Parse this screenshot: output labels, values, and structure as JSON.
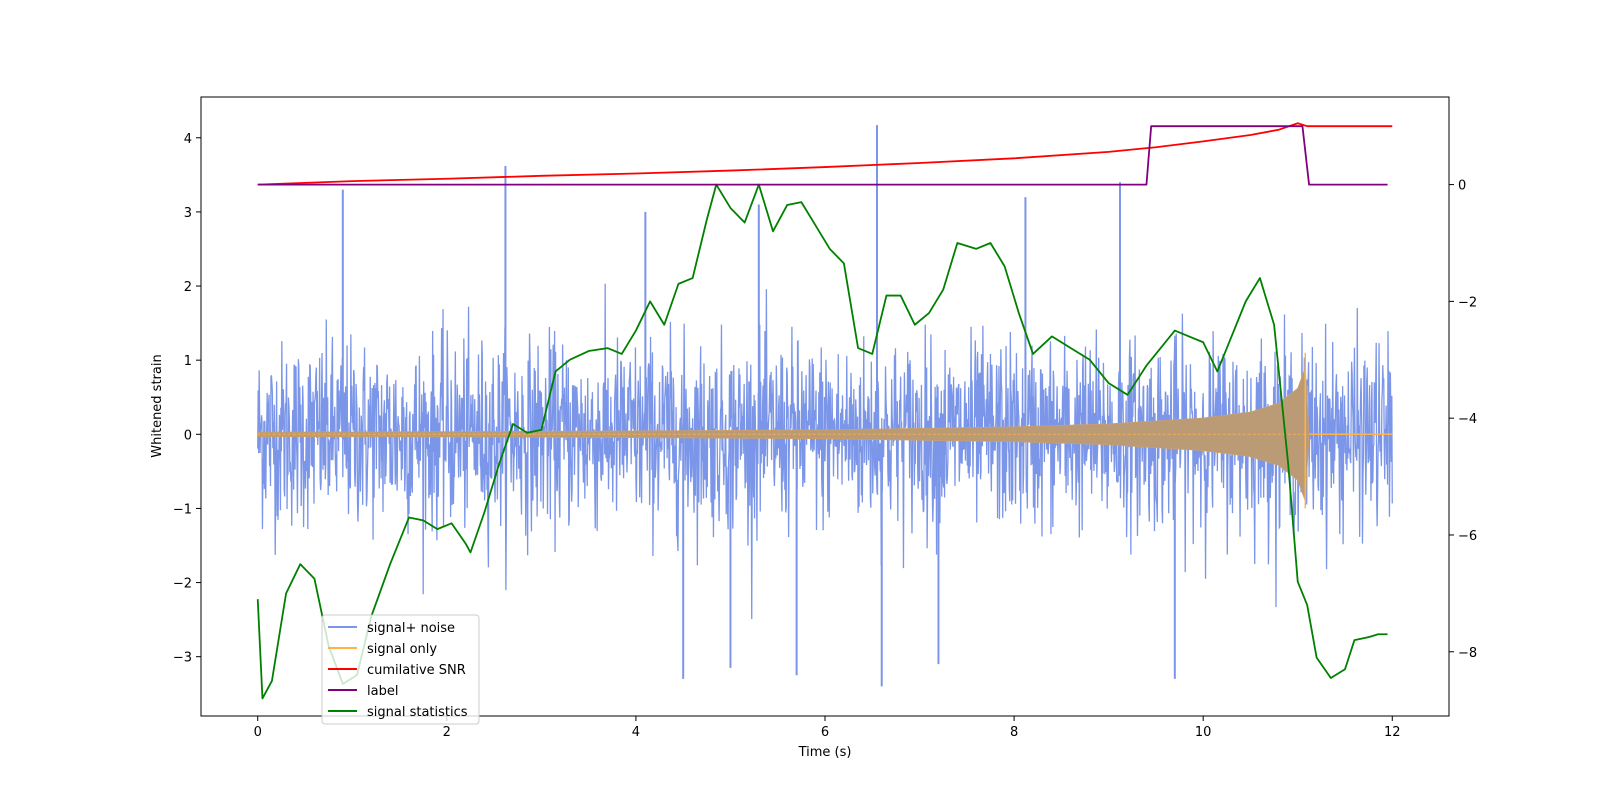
{
  "chart_data": {
    "type": "line",
    "xlabel": "Time (s)",
    "ylabel": "Whitened strain",
    "xlim": [
      -0.6,
      12.6
    ],
    "ylim": [
      -3.8,
      4.55
    ],
    "y2lim": [
      -9.1,
      1.5
    ],
    "xticks": [
      0,
      2,
      4,
      6,
      8,
      10,
      12
    ],
    "yticks": [
      -3,
      -2,
      -1,
      0,
      1,
      2,
      3,
      4
    ],
    "y2ticks": [
      -8,
      -6,
      -4,
      -2,
      0
    ],
    "legend_position": "lower-left",
    "noise_series": {
      "name": "signal+ noise",
      "color": "#7b96e8",
      "x_range": [
        0,
        12
      ],
      "typical_amplitude": 1.5,
      "spikes": [
        [
          0.9,
          3.3
        ],
        [
          2.62,
          3.62
        ],
        [
          6.55,
          4.17
        ],
        [
          9.12,
          3.4
        ],
        [
          4.1,
          3.0
        ],
        [
          5.3,
          3.1
        ],
        [
          8.12,
          3.2
        ]
      ],
      "negative_spikes": [
        [
          4.5,
          -3.3
        ],
        [
          6.6,
          -3.4
        ],
        [
          9.7,
          -3.3
        ],
        [
          5.0,
          -3.15
        ],
        [
          5.7,
          -3.25
        ],
        [
          7.2,
          -3.1
        ]
      ]
    },
    "signal_series": {
      "name": "signal only",
      "color": "#ffb347",
      "envelope": {
        "x": [
          0,
          2,
          4,
          6,
          8,
          9,
          10,
          10.5,
          10.8,
          11.0,
          11.08,
          11.12,
          12
        ],
        "y": [
          0.03,
          0.035,
          0.045,
          0.06,
          0.1,
          0.14,
          0.22,
          0.3,
          0.42,
          0.62,
          0.9,
          0.0,
          0.0
        ]
      }
    },
    "series": [
      {
        "name": "cumilative SNR",
        "color": "#ff0000",
        "axis": "right",
        "x": [
          0,
          1,
          2,
          3,
          4,
          5,
          6,
          7,
          8,
          9,
          9.5,
          10,
          10.5,
          10.8,
          11.0,
          11.1,
          12
        ],
        "y": [
          0.0,
          0.06,
          0.1,
          0.15,
          0.19,
          0.24,
          0.3,
          0.37,
          0.45,
          0.56,
          0.64,
          0.74,
          0.85,
          0.94,
          1.05,
          1.0,
          1.0
        ]
      },
      {
        "name": "label",
        "color": "#800080",
        "axis": "right",
        "x": [
          0,
          9.4,
          9.45,
          11.05,
          11.12,
          11.95
        ],
        "y": [
          0,
          0,
          1,
          1,
          0,
          0
        ]
      },
      {
        "name": "signal statistics",
        "color": "#008000",
        "axis": "right",
        "x": [
          0,
          0.05,
          0.15,
          0.3,
          0.45,
          0.6,
          0.75,
          0.9,
          1.05,
          1.2,
          1.4,
          1.6,
          1.75,
          1.9,
          2.05,
          2.2,
          2.25,
          2.4,
          2.55,
          2.7,
          2.85,
          3.0,
          3.15,
          3.3,
          3.5,
          3.7,
          3.85,
          4.0,
          4.15,
          4.3,
          4.45,
          4.6,
          4.75,
          4.85,
          5.0,
          5.15,
          5.3,
          5.45,
          5.6,
          5.75,
          5.9,
          6.05,
          6.2,
          6.35,
          6.5,
          6.65,
          6.8,
          6.95,
          7.1,
          7.25,
          7.4,
          7.6,
          7.75,
          7.9,
          8.05,
          8.2,
          8.4,
          8.6,
          8.8,
          9.0,
          9.2,
          9.4,
          9.55,
          9.7,
          9.85,
          10.0,
          10.15,
          10.3,
          10.45,
          10.6,
          10.75,
          10.9,
          11.0,
          11.1,
          11.2,
          11.35,
          11.5,
          11.6,
          11.75,
          11.85,
          11.95
        ],
        "y": [
          -7.1,
          -8.8,
          -8.5,
          -7.0,
          -6.5,
          -6.75,
          -7.9,
          -8.55,
          -8.4,
          -7.4,
          -6.5,
          -5.7,
          -5.75,
          -5.9,
          -5.8,
          -6.15,
          -6.3,
          -5.6,
          -4.8,
          -4.1,
          -4.25,
          -4.2,
          -3.2,
          -3.0,
          -2.85,
          -2.8,
          -2.9,
          -2.5,
          -2.0,
          -2.4,
          -1.7,
          -1.6,
          -0.6,
          0.0,
          -0.4,
          -0.65,
          0.0,
          -0.8,
          -0.35,
          -0.3,
          -0.7,
          -1.1,
          -1.35,
          -2.8,
          -2.9,
          -1.9,
          -1.9,
          -2.4,
          -2.2,
          -1.8,
          -1.0,
          -1.1,
          -1.0,
          -1.4,
          -2.2,
          -2.9,
          -2.6,
          -2.8,
          -3.0,
          -3.4,
          -3.6,
          -3.1,
          -2.8,
          -2.5,
          -2.6,
          -2.7,
          -3.2,
          -2.6,
          -2.0,
          -1.6,
          -2.4,
          -4.8,
          -6.8,
          -7.2,
          -8.1,
          -8.45,
          -8.3,
          -7.8,
          -7.75,
          -7.7,
          -7.7
        ]
      }
    ]
  }
}
